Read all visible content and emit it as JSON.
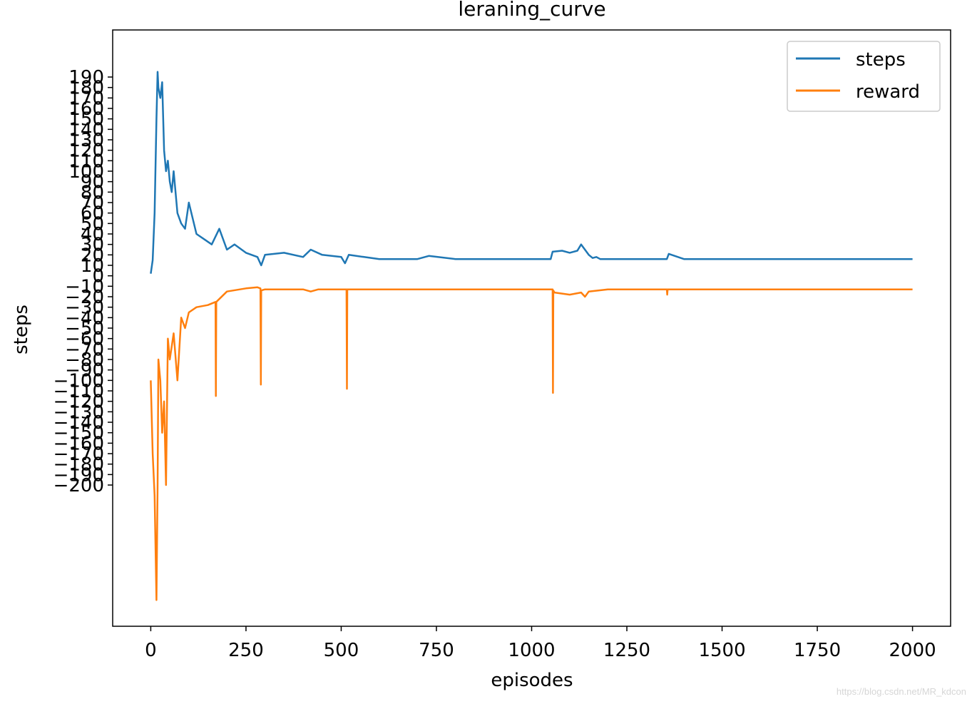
{
  "chart_data": {
    "type": "line",
    "title": "leraning_curve",
    "xlabel": "episodes",
    "ylabel": "steps",
    "xlim": [
      -100,
      2100
    ],
    "ylim": [
      -335,
      235
    ],
    "xticks": [
      0,
      250,
      500,
      750,
      1000,
      1250,
      1500,
      1750,
      2000
    ],
    "yticks": [
      190,
      180,
      170,
      160,
      150,
      140,
      130,
      120,
      110,
      100,
      90,
      80,
      70,
      60,
      50,
      40,
      30,
      20,
      10,
      0,
      -10,
      -20,
      -30,
      -40,
      -50,
      -60,
      -70,
      -80,
      -90,
      -100,
      -110,
      -120,
      -130,
      -140,
      -150,
      -160,
      -170,
      -180,
      -190,
      -200
    ],
    "grid": false,
    "legend_position": "top-right",
    "series": [
      {
        "name": "steps",
        "color": "#1f77b4",
        "x": [
          0,
          5,
          10,
          15,
          18,
          20,
          25,
          30,
          35,
          40,
          45,
          50,
          55,
          60,
          70,
          80,
          90,
          100,
          120,
          140,
          160,
          180,
          200,
          220,
          250,
          280,
          290,
          300,
          350,
          400,
          420,
          450,
          500,
          510,
          520,
          560,
          600,
          620,
          700,
          730,
          800,
          1000,
          1050,
          1055,
          1080,
          1100,
          1120,
          1130,
          1150,
          1160,
          1170,
          1180,
          1200,
          1300,
          1355,
          1360,
          1400,
          1600,
          1650,
          1810,
          1870,
          1980,
          2000
        ],
        "values": [
          2,
          15,
          60,
          150,
          195,
          180,
          170,
          185,
          120,
          100,
          110,
          90,
          80,
          100,
          60,
          50,
          45,
          70,
          40,
          35,
          30,
          45,
          25,
          30,
          22,
          18,
          10,
          20,
          22,
          18,
          25,
          20,
          18,
          12,
          20,
          18,
          16,
          16,
          16,
          19,
          16,
          16,
          16,
          23,
          24,
          22,
          24,
          30,
          20,
          17,
          18,
          16,
          16,
          16,
          16,
          21,
          16,
          16,
          16,
          16,
          16,
          16,
          16
        ]
      },
      {
        "name": "reward",
        "color": "#ff7f0e",
        "x": [
          0,
          5,
          10,
          15,
          18,
          20,
          25,
          30,
          35,
          40,
          45,
          50,
          60,
          70,
          80,
          90,
          100,
          120,
          150,
          170,
          171,
          172,
          200,
          250,
          280,
          288,
          289,
          290,
          300,
          400,
          420,
          440,
          500,
          514,
          515,
          516,
          520,
          600,
          620,
          700,
          1000,
          1050,
          1055,
          1056,
          1057,
          1060,
          1100,
          1130,
          1140,
          1150,
          1200,
          1355,
          1356,
          1357,
          1360,
          1600,
          1650,
          1810,
          1870,
          1980,
          2000
        ],
        "values": [
          -100,
          -170,
          -210,
          -310,
          -200,
          -80,
          -100,
          -150,
          -120,
          -200,
          -60,
          -80,
          -55,
          -100,
          -40,
          -50,
          -35,
          -30,
          -28,
          -25,
          -115,
          -25,
          -15,
          -12,
          -11,
          -12,
          -104,
          -14,
          -13,
          -13,
          -15,
          -13,
          -13,
          -13,
          -108,
          -13,
          -13,
          -13,
          -13,
          -13,
          -13,
          -13,
          -13,
          -112,
          -14,
          -16,
          -18,
          -16,
          -20,
          -15,
          -13,
          -13,
          -18,
          -13,
          -13,
          -13,
          -13,
          -13,
          -13,
          -13,
          -13
        ]
      }
    ]
  },
  "watermark": "https://blog.csdn.net/MR_kdcon"
}
